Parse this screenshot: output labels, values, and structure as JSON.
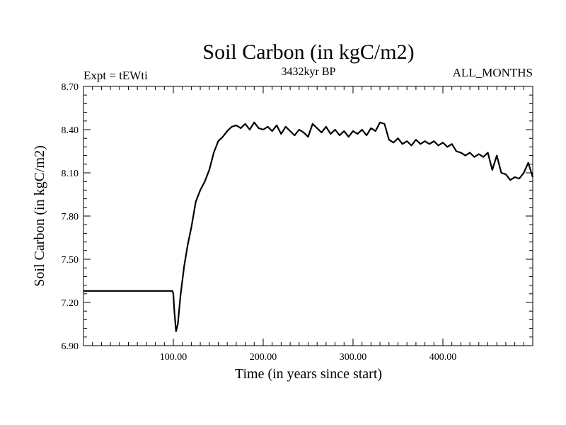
{
  "chart_data": {
    "type": "line",
    "title": "Soil Carbon (in kgC/m2)",
    "subtitle": "3432kyr BP",
    "left_label": "Expt = tEWti",
    "right_label": "ALL_MONTHS",
    "xlabel": "Time (in years since start)",
    "ylabel": "Soil Carbon (in kgC/m2)",
    "xlim": [
      0,
      500
    ],
    "ylim": [
      6.9,
      8.7
    ],
    "x_ticks": [
      {
        "value": 100,
        "label": "100.00"
      },
      {
        "value": 200,
        "label": "200.00"
      },
      {
        "value": 300,
        "label": "300.00"
      },
      {
        "value": 400,
        "label": "400.00"
      }
    ],
    "y_ticks": [
      {
        "value": 6.9,
        "label": "6.90"
      },
      {
        "value": 7.2,
        "label": "7.20"
      },
      {
        "value": 7.5,
        "label": "7.50"
      },
      {
        "value": 7.8,
        "label": "7.80"
      },
      {
        "value": 8.1,
        "label": "8.10"
      },
      {
        "value": 8.4,
        "label": "8.40"
      },
      {
        "value": 8.7,
        "label": "8.70"
      }
    ],
    "grid": false,
    "series": [
      {
        "name": "Soil Carbon",
        "color": "#000000",
        "x": [
          0,
          50,
          99,
          100,
          101,
          103,
          105,
          108,
          112,
          116,
          120,
          125,
          130,
          135,
          140,
          145,
          150,
          155,
          160,
          165,
          170,
          175,
          180,
          185,
          190,
          195,
          200,
          205,
          210,
          215,
          220,
          225,
          230,
          235,
          240,
          245,
          250,
          255,
          260,
          265,
          270,
          275,
          280,
          285,
          290,
          295,
          300,
          305,
          310,
          315,
          320,
          325,
          330,
          335,
          340,
          345,
          350,
          355,
          360,
          365,
          370,
          375,
          380,
          385,
          390,
          395,
          400,
          405,
          410,
          415,
          420,
          425,
          430,
          435,
          440,
          445,
          450,
          455,
          460,
          465,
          470,
          475,
          480,
          485,
          490,
          495,
          500
        ],
        "values": [
          7.28,
          7.28,
          7.28,
          7.26,
          7.15,
          7.0,
          7.05,
          7.25,
          7.45,
          7.6,
          7.72,
          7.9,
          7.98,
          8.04,
          8.12,
          8.24,
          8.32,
          8.35,
          8.39,
          8.42,
          8.43,
          8.41,
          8.44,
          8.4,
          8.45,
          8.41,
          8.4,
          8.42,
          8.39,
          8.43,
          8.37,
          8.42,
          8.39,
          8.36,
          8.4,
          8.38,
          8.35,
          8.44,
          8.41,
          8.38,
          8.42,
          8.37,
          8.4,
          8.36,
          8.39,
          8.35,
          8.39,
          8.37,
          8.4,
          8.36,
          8.41,
          8.39,
          8.45,
          8.44,
          8.33,
          8.31,
          8.34,
          8.3,
          8.32,
          8.29,
          8.33,
          8.3,
          8.32,
          8.3,
          8.32,
          8.29,
          8.31,
          8.28,
          8.3,
          8.25,
          8.24,
          8.22,
          8.24,
          8.21,
          8.23,
          8.21,
          8.24,
          8.12,
          8.22,
          8.1,
          8.09,
          8.05,
          8.07,
          8.06,
          8.1,
          8.17,
          8.07
        ]
      }
    ]
  }
}
